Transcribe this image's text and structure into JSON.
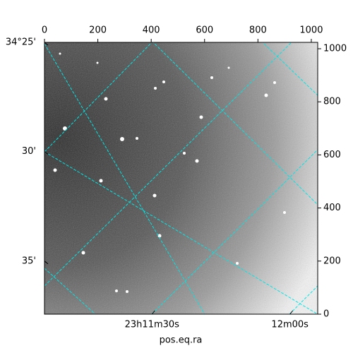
{
  "chart_data": {
    "type": "image",
    "xlabel": "pos.eq.ra",
    "xlim": [
      0,
      1024
    ],
    "ylim": [
      0,
      1024
    ],
    "xticks": [
      0,
      200,
      400,
      600,
      800,
      1000
    ],
    "yticks": [
      0,
      200,
      400,
      600,
      800,
      1000
    ],
    "left_ticks": [
      {
        "value": 1027,
        "label": "34°25'"
      },
      {
        "value": 613,
        "label": "30'"
      },
      {
        "value": 200,
        "label": "35'"
      }
    ],
    "bottom_ticks": [
      {
        "value": 403,
        "label": "23h11m30s"
      },
      {
        "value": 920,
        "label": "12m00s"
      }
    ],
    "grid": true,
    "grid_color": "#00e5e5",
    "cmap": "gray"
  }
}
